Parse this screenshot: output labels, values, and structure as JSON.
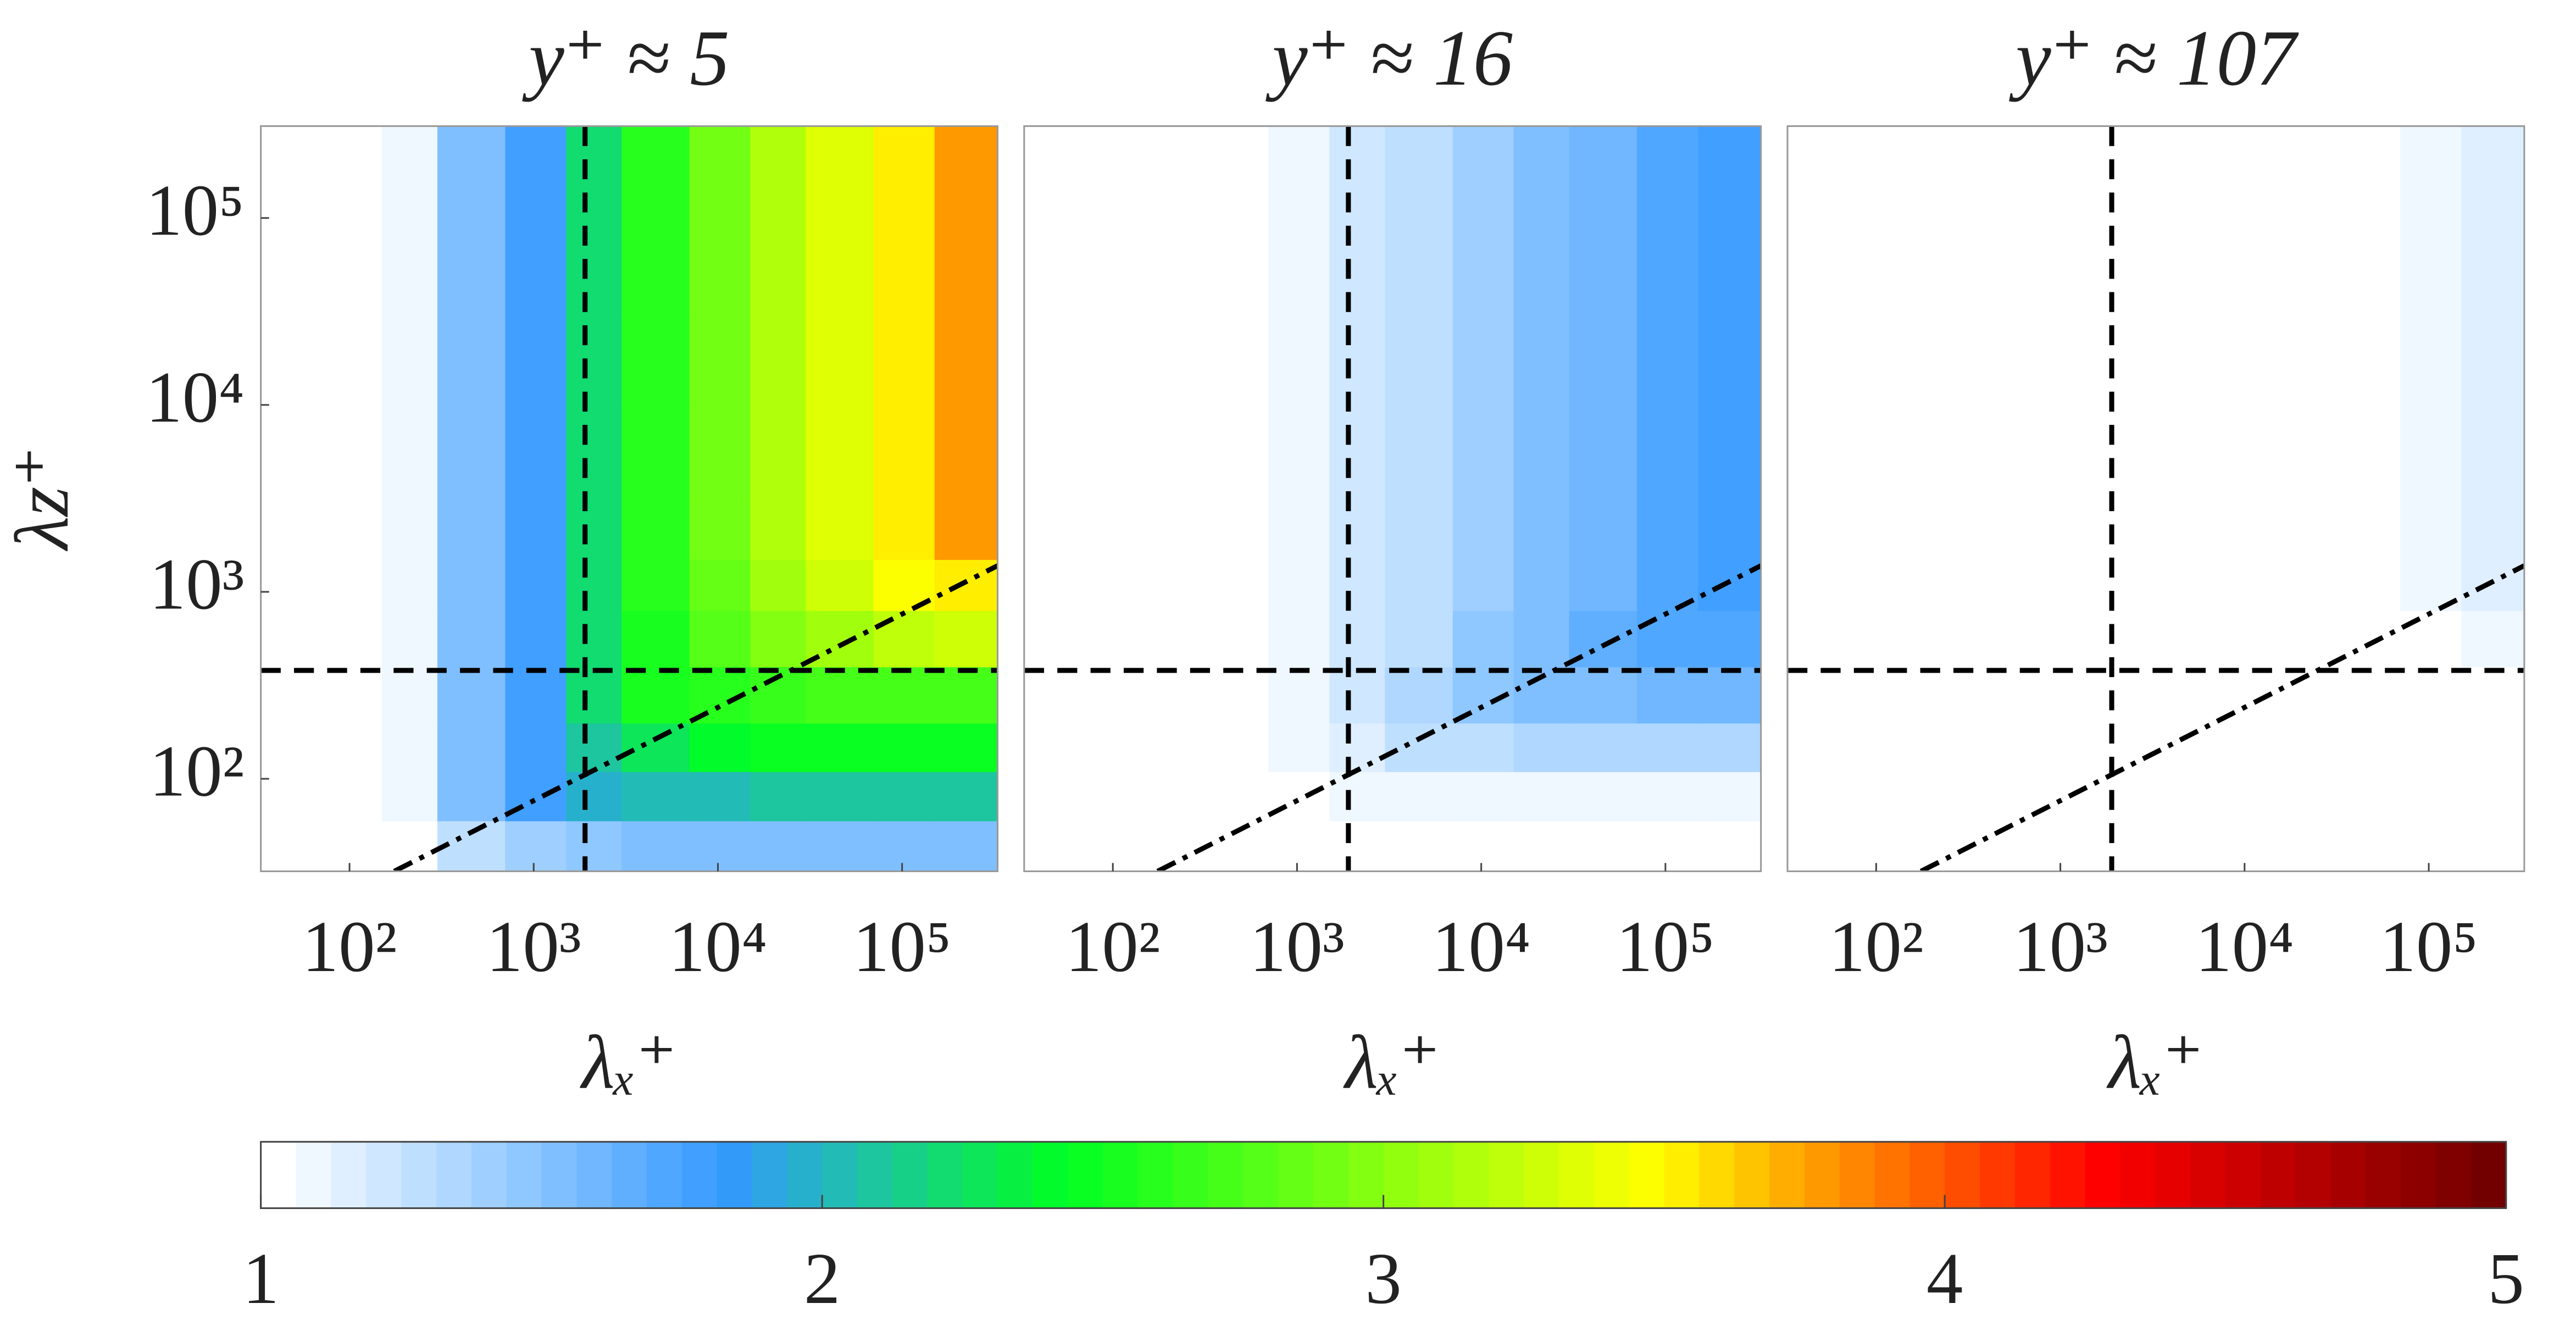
{
  "chart_data": [
    {
      "type": "contour",
      "title": "y⁺ ≈ 5",
      "xlabel": "λₓ⁺",
      "ylabel": "λz⁺",
      "log_x": true,
      "log_y": true,
      "xlim": [
        33,
        330000
      ],
      "ylim": [
        32,
        310000
      ],
      "xticks": [
        {
          "value": 100,
          "label": "10²"
        },
        {
          "value": 1000,
          "label": "10³"
        },
        {
          "value": 10000,
          "label": "10⁴"
        },
        {
          "value": 100000,
          "label": "10⁵"
        }
      ],
      "yticks": [
        {
          "value": 100,
          "label": "10²"
        },
        {
          "value": 1000,
          "label": "10³"
        },
        {
          "value": 10000,
          "label": "10⁴"
        },
        {
          "value": 100000,
          "label": "10⁵"
        }
      ],
      "x_edges": [
        33,
        70,
        150,
        300,
        700,
        1500,
        3000,
        7000,
        15000,
        30000,
        70000,
        150000,
        330000
      ],
      "y_edges": [
        32,
        60,
        110,
        200,
        400,
        800,
        1500,
        3000,
        10000,
        30000,
        100000,
        310000
      ],
      "z": [
        [
          1,
          1,
          1.05,
          1.3,
          1.4,
          1.45,
          1.5,
          1.5,
          1.5,
          1.5,
          1.5,
          1.5
        ],
        [
          1,
          1,
          1.1,
          1.5,
          1.8,
          1.95,
          2.0,
          2.05,
          2.1,
          2.1,
          2.1,
          2.1
        ],
        [
          1,
          1,
          1.1,
          1.5,
          1.8,
          2.1,
          2.3,
          2.4,
          2.45,
          2.45,
          2.45,
          2.45
        ],
        [
          1,
          1,
          1.1,
          1.5,
          1.8,
          2.2,
          2.5,
          2.6,
          2.65,
          2.7,
          2.7,
          2.7
        ],
        [
          1,
          1,
          1.1,
          1.5,
          1.8,
          2.2,
          2.55,
          2.75,
          2.95,
          3.1,
          3.2,
          3.3
        ],
        [
          1,
          1,
          1.1,
          1.5,
          1.8,
          2.2,
          2.6,
          2.85,
          3.1,
          3.3,
          3.45,
          3.55
        ],
        [
          1,
          1,
          1.1,
          1.5,
          1.8,
          2.2,
          2.6,
          2.9,
          3.15,
          3.35,
          3.55,
          3.75
        ],
        [
          1,
          1,
          1.1,
          1.5,
          1.8,
          2.2,
          2.6,
          2.9,
          3.15,
          3.35,
          3.55,
          3.75
        ],
        [
          1,
          1,
          1.1,
          1.5,
          1.8,
          2.2,
          2.6,
          2.9,
          3.15,
          3.35,
          3.55,
          3.75
        ],
        [
          1,
          1,
          1.1,
          1.5,
          1.8,
          2.2,
          2.6,
          2.9,
          3.15,
          3.35,
          3.55,
          3.75
        ],
        [
          1,
          1,
          1.1,
          1.5,
          1.8,
          2.2,
          2.6,
          2.9,
          3.15,
          3.35,
          3.55,
          3.75
        ]
      ],
      "vlines": [
        1900
      ],
      "hlines": [
        380
      ],
      "ref_line": {
        "x": [
          175,
          330000
        ],
        "y": [
          32,
          1380
        ]
      }
    },
    {
      "type": "contour",
      "title": "y⁺ ≈ 16",
      "xlabel": "λₓ⁺",
      "log_x": true,
      "log_y": true,
      "xlim": [
        33,
        330000
      ],
      "ylim": [
        32,
        310000
      ],
      "xticks": [
        {
          "value": 100,
          "label": "10²"
        },
        {
          "value": 1000,
          "label": "10³"
        },
        {
          "value": 10000,
          "label": "10⁴"
        },
        {
          "value": 100000,
          "label": "10⁵"
        }
      ],
      "x_edges": [
        33,
        70,
        150,
        300,
        700,
        1500,
        3000,
        7000,
        15000,
        30000,
        70000,
        150000,
        330000
      ],
      "y_edges": [
        32,
        60,
        110,
        200,
        400,
        800,
        1500,
        3000,
        10000,
        30000,
        100000,
        310000
      ],
      "z": [
        [
          1,
          1,
          1,
          1,
          1,
          1,
          1,
          1,
          1,
          1,
          1,
          1
        ],
        [
          1,
          1,
          1,
          1,
          1.05,
          1.1,
          1.1,
          1.1,
          1.1,
          1.1,
          1.1,
          1.1
        ],
        [
          1,
          1,
          1,
          1,
          1.1,
          1.15,
          1.25,
          1.3,
          1.35,
          1.35,
          1.35,
          1.35
        ],
        [
          1,
          1,
          1,
          1,
          1.1,
          1.2,
          1.35,
          1.45,
          1.55,
          1.55,
          1.6,
          1.6
        ],
        [
          1,
          1,
          1,
          1,
          1.1,
          1.2,
          1.3,
          1.45,
          1.55,
          1.65,
          1.7,
          1.7
        ],
        [
          1,
          1,
          1,
          1,
          1.1,
          1.2,
          1.3,
          1.4,
          1.5,
          1.6,
          1.7,
          1.75
        ],
        [
          1,
          1,
          1,
          1,
          1.1,
          1.2,
          1.3,
          1.4,
          1.5,
          1.6,
          1.7,
          1.75
        ],
        [
          1,
          1,
          1,
          1,
          1.1,
          1.2,
          1.3,
          1.4,
          1.5,
          1.6,
          1.7,
          1.75
        ],
        [
          1,
          1,
          1,
          1,
          1.1,
          1.2,
          1.3,
          1.4,
          1.5,
          1.6,
          1.7,
          1.75
        ],
        [
          1,
          1,
          1,
          1,
          1.1,
          1.2,
          1.3,
          1.4,
          1.5,
          1.6,
          1.7,
          1.75
        ],
        [
          1,
          1,
          1,
          1,
          1.1,
          1.2,
          1.3,
          1.4,
          1.5,
          1.6,
          1.7,
          1.75
        ]
      ],
      "vlines": [
        1900
      ],
      "hlines": [
        380
      ],
      "ref_line": {
        "x": [
          175,
          330000
        ],
        "y": [
          32,
          1380
        ]
      }
    },
    {
      "type": "contour",
      "title": "y⁺ ≈ 107",
      "xlabel": "λₓ⁺",
      "log_x": true,
      "log_y": true,
      "xlim": [
        33,
        330000
      ],
      "ylim": [
        32,
        310000
      ],
      "xticks": [
        {
          "value": 100,
          "label": "10²"
        },
        {
          "value": 1000,
          "label": "10³"
        },
        {
          "value": 10000,
          "label": "10⁴"
        },
        {
          "value": 100000,
          "label": "10⁵"
        }
      ],
      "x_edges": [
        33,
        70,
        150,
        300,
        700,
        1500,
        3000,
        7000,
        15000,
        30000,
        70000,
        150000,
        330000
      ],
      "y_edges": [
        32,
        60,
        110,
        200,
        400,
        800,
        1500,
        3000,
        10000,
        30000,
        100000,
        310000
      ],
      "z": [
        [
          1,
          1,
          1,
          1,
          1,
          1,
          1,
          1,
          1,
          1,
          1,
          1
        ],
        [
          1,
          1,
          1,
          1,
          1,
          1,
          1,
          1,
          1,
          1,
          1,
          1
        ],
        [
          1,
          1,
          1,
          1,
          1,
          1,
          1,
          1,
          1,
          1,
          1,
          1
        ],
        [
          1,
          1,
          1,
          1,
          1,
          1,
          1,
          1,
          1,
          1,
          1,
          1
        ],
        [
          1,
          1,
          1,
          1,
          1,
          1,
          1,
          1,
          1,
          1,
          1,
          1.1
        ],
        [
          1,
          1,
          1,
          1,
          1,
          1,
          1,
          1,
          1,
          1,
          1.1,
          1.15
        ],
        [
          1,
          1,
          1,
          1,
          1,
          1,
          1,
          1,
          1,
          1,
          1.1,
          1.15
        ],
        [
          1,
          1,
          1,
          1,
          1,
          1,
          1,
          1,
          1,
          1,
          1.1,
          1.15
        ],
        [
          1,
          1,
          1,
          1,
          1,
          1,
          1,
          1,
          1,
          1,
          1.1,
          1.15
        ],
        [
          1,
          1,
          1,
          1,
          1,
          1,
          1,
          1,
          1,
          1,
          1.1,
          1.15
        ],
        [
          1,
          1,
          1,
          1,
          1,
          1,
          1,
          1,
          1,
          1,
          1.1,
          1.15
        ]
      ],
      "vlines": [
        1900
      ],
      "hlines": [
        380
      ],
      "ref_line": {
        "x": [
          175,
          330000
        ],
        "y": [
          32,
          1380
        ]
      }
    },
    {
      "type": "colorbar",
      "lim": [
        1,
        5
      ],
      "ticks": [
        1,
        2,
        3,
        4,
        5
      ],
      "levels": 64,
      "colormap": [
        {
          "value": 1,
          "color": "#ffffff"
        },
        {
          "value": 1.8,
          "color": "#3399ff"
        },
        {
          "value": 2.4,
          "color": "#00ff22"
        },
        {
          "value": 3.45,
          "color": "#ffff00"
        },
        {
          "value": 3.75,
          "color": "#ff9900"
        },
        {
          "value": 4.25,
          "color": "#ff0000"
        },
        {
          "value": 5,
          "color": "#660000"
        }
      ]
    }
  ]
}
